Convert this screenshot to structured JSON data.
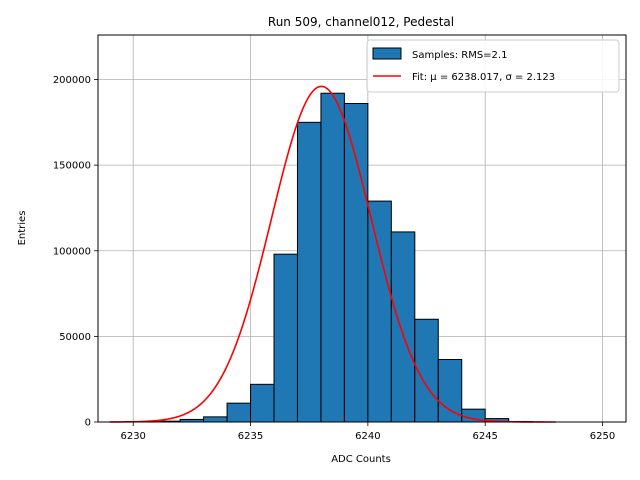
{
  "chart_data": {
    "type": "bar",
    "title": "Run 509, channel012, Pedestal",
    "xlabel": "ADC Counts",
    "ylabel": "Entries",
    "xlim": [
      6228.5,
      6251.0
    ],
    "ylim": [
      0,
      226000
    ],
    "xticks": [
      6230,
      6235,
      6240,
      6245,
      6250
    ],
    "yticks": [
      0,
      50000,
      100000,
      150000,
      200000
    ],
    "grid": true,
    "legend_position": "top-right",
    "histogram": {
      "name": "Samples: RMS=2.1",
      "color": "#1f77b4",
      "bin_width": 1,
      "bins": [
        {
          "x": 6231,
          "count": 500
        },
        {
          "x": 6232,
          "count": 1500
        },
        {
          "x": 6233,
          "count": 3000
        },
        {
          "x": 6234,
          "count": 11000
        },
        {
          "x": 6235,
          "count": 22000
        },
        {
          "x": 6236,
          "count": 98000
        },
        {
          "x": 6237,
          "count": 175000
        },
        {
          "x": 6238,
          "count": 192000
        },
        {
          "x": 6239,
          "count": 186000
        },
        {
          "x": 6240,
          "count": 129000
        },
        {
          "x": 6241,
          "count": 111000
        },
        {
          "x": 6242,
          "count": 60000
        },
        {
          "x": 6243,
          "count": 36500
        },
        {
          "x": 6244,
          "count": 7500
        },
        {
          "x": 6245,
          "count": 2000
        },
        {
          "x": 6246,
          "count": 300
        }
      ]
    },
    "fit": {
      "name": "Fit: μ = 6238.017, σ = 2.123",
      "color": "#ff0000",
      "mu": 6238.017,
      "sigma": 2.123,
      "amplitude": 196000,
      "x_range": [
        6229,
        6248
      ]
    }
  }
}
